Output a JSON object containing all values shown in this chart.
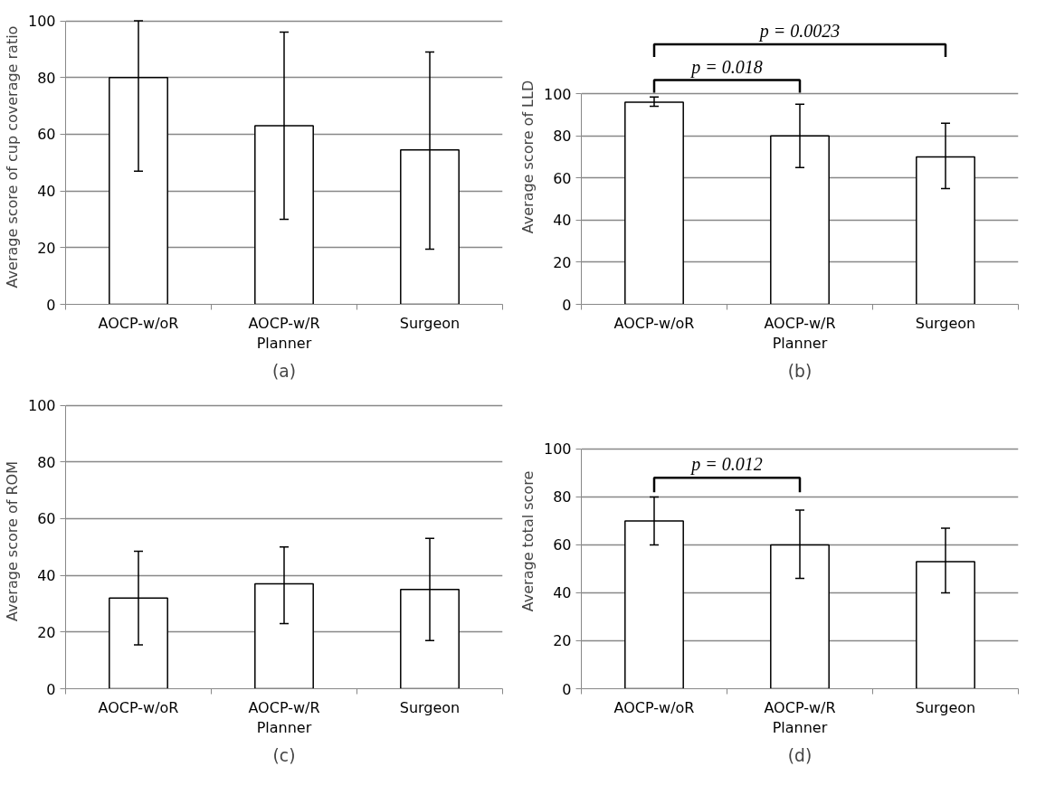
{
  "chart_data": [
    {
      "type": "bar",
      "title": "(a)",
      "ylabel": "Average score of cup coverage ratio",
      "categories": [
        "AOCP-w/oR",
        "AOCP-w/R\nPlanner",
        "Surgeon"
      ],
      "values": [
        80,
        63,
        54.5
      ],
      "errors": [
        [
          47,
          100
        ],
        [
          30,
          96
        ],
        [
          19.5,
          89
        ]
      ],
      "color": "#ffffff",
      "ylim": [
        0,
        100
      ],
      "yticks": [
        0,
        20,
        40,
        60,
        80,
        100
      ],
      "grid": "y"
    },
    {
      "type": "bar",
      "title": "(b)",
      "ylabel": "Average score of LLD",
      "categories": [
        "AOCP-w/oR",
        "AOCP-w/R\nPlanner",
        "Surgeon"
      ],
      "values": [
        96,
        80,
        70
      ],
      "errors": [
        [
          94,
          98.5
        ],
        [
          65,
          95
        ],
        [
          55,
          86
        ]
      ],
      "color": "#ffffff",
      "ylim": [
        0,
        100
      ],
      "yticks": [
        0,
        20,
        40,
        60,
        80,
        100
      ],
      "grid": "y",
      "annotations": [
        "p = 0.018",
        "p = 0.0023"
      ]
    },
    {
      "type": "bar",
      "title": "(c)",
      "ylabel": "Average score of ROM",
      "categories": [
        "AOCP-w/oR",
        "AOCP-w/R\nPlanner",
        "Surgeon"
      ],
      "values": [
        32,
        37,
        35
      ],
      "errors": [
        [
          15.5,
          48.5
        ],
        [
          23,
          50
        ],
        [
          17,
          53
        ]
      ],
      "color": "#ffffff",
      "ylim": [
        0,
        100
      ],
      "yticks": [
        0,
        20,
        40,
        60,
        80,
        100
      ],
      "grid": "y"
    },
    {
      "type": "bar",
      "title": "(d)",
      "ylabel": "Average total score",
      "categories": [
        "AOCP-w/oR",
        "AOCP-w/R\nPlanner",
        "Surgeon"
      ],
      "values": [
        70,
        60,
        53
      ],
      "errors": [
        [
          60,
          80
        ],
        [
          46,
          74.5
        ],
        [
          40,
          67
        ]
      ],
      "color": "#ffffff",
      "ylim": [
        0,
        100
      ],
      "yticks": [
        0,
        20,
        40,
        60,
        80,
        100
      ],
      "grid": "y",
      "annotations": [
        "p = 0.012"
      ]
    }
  ]
}
